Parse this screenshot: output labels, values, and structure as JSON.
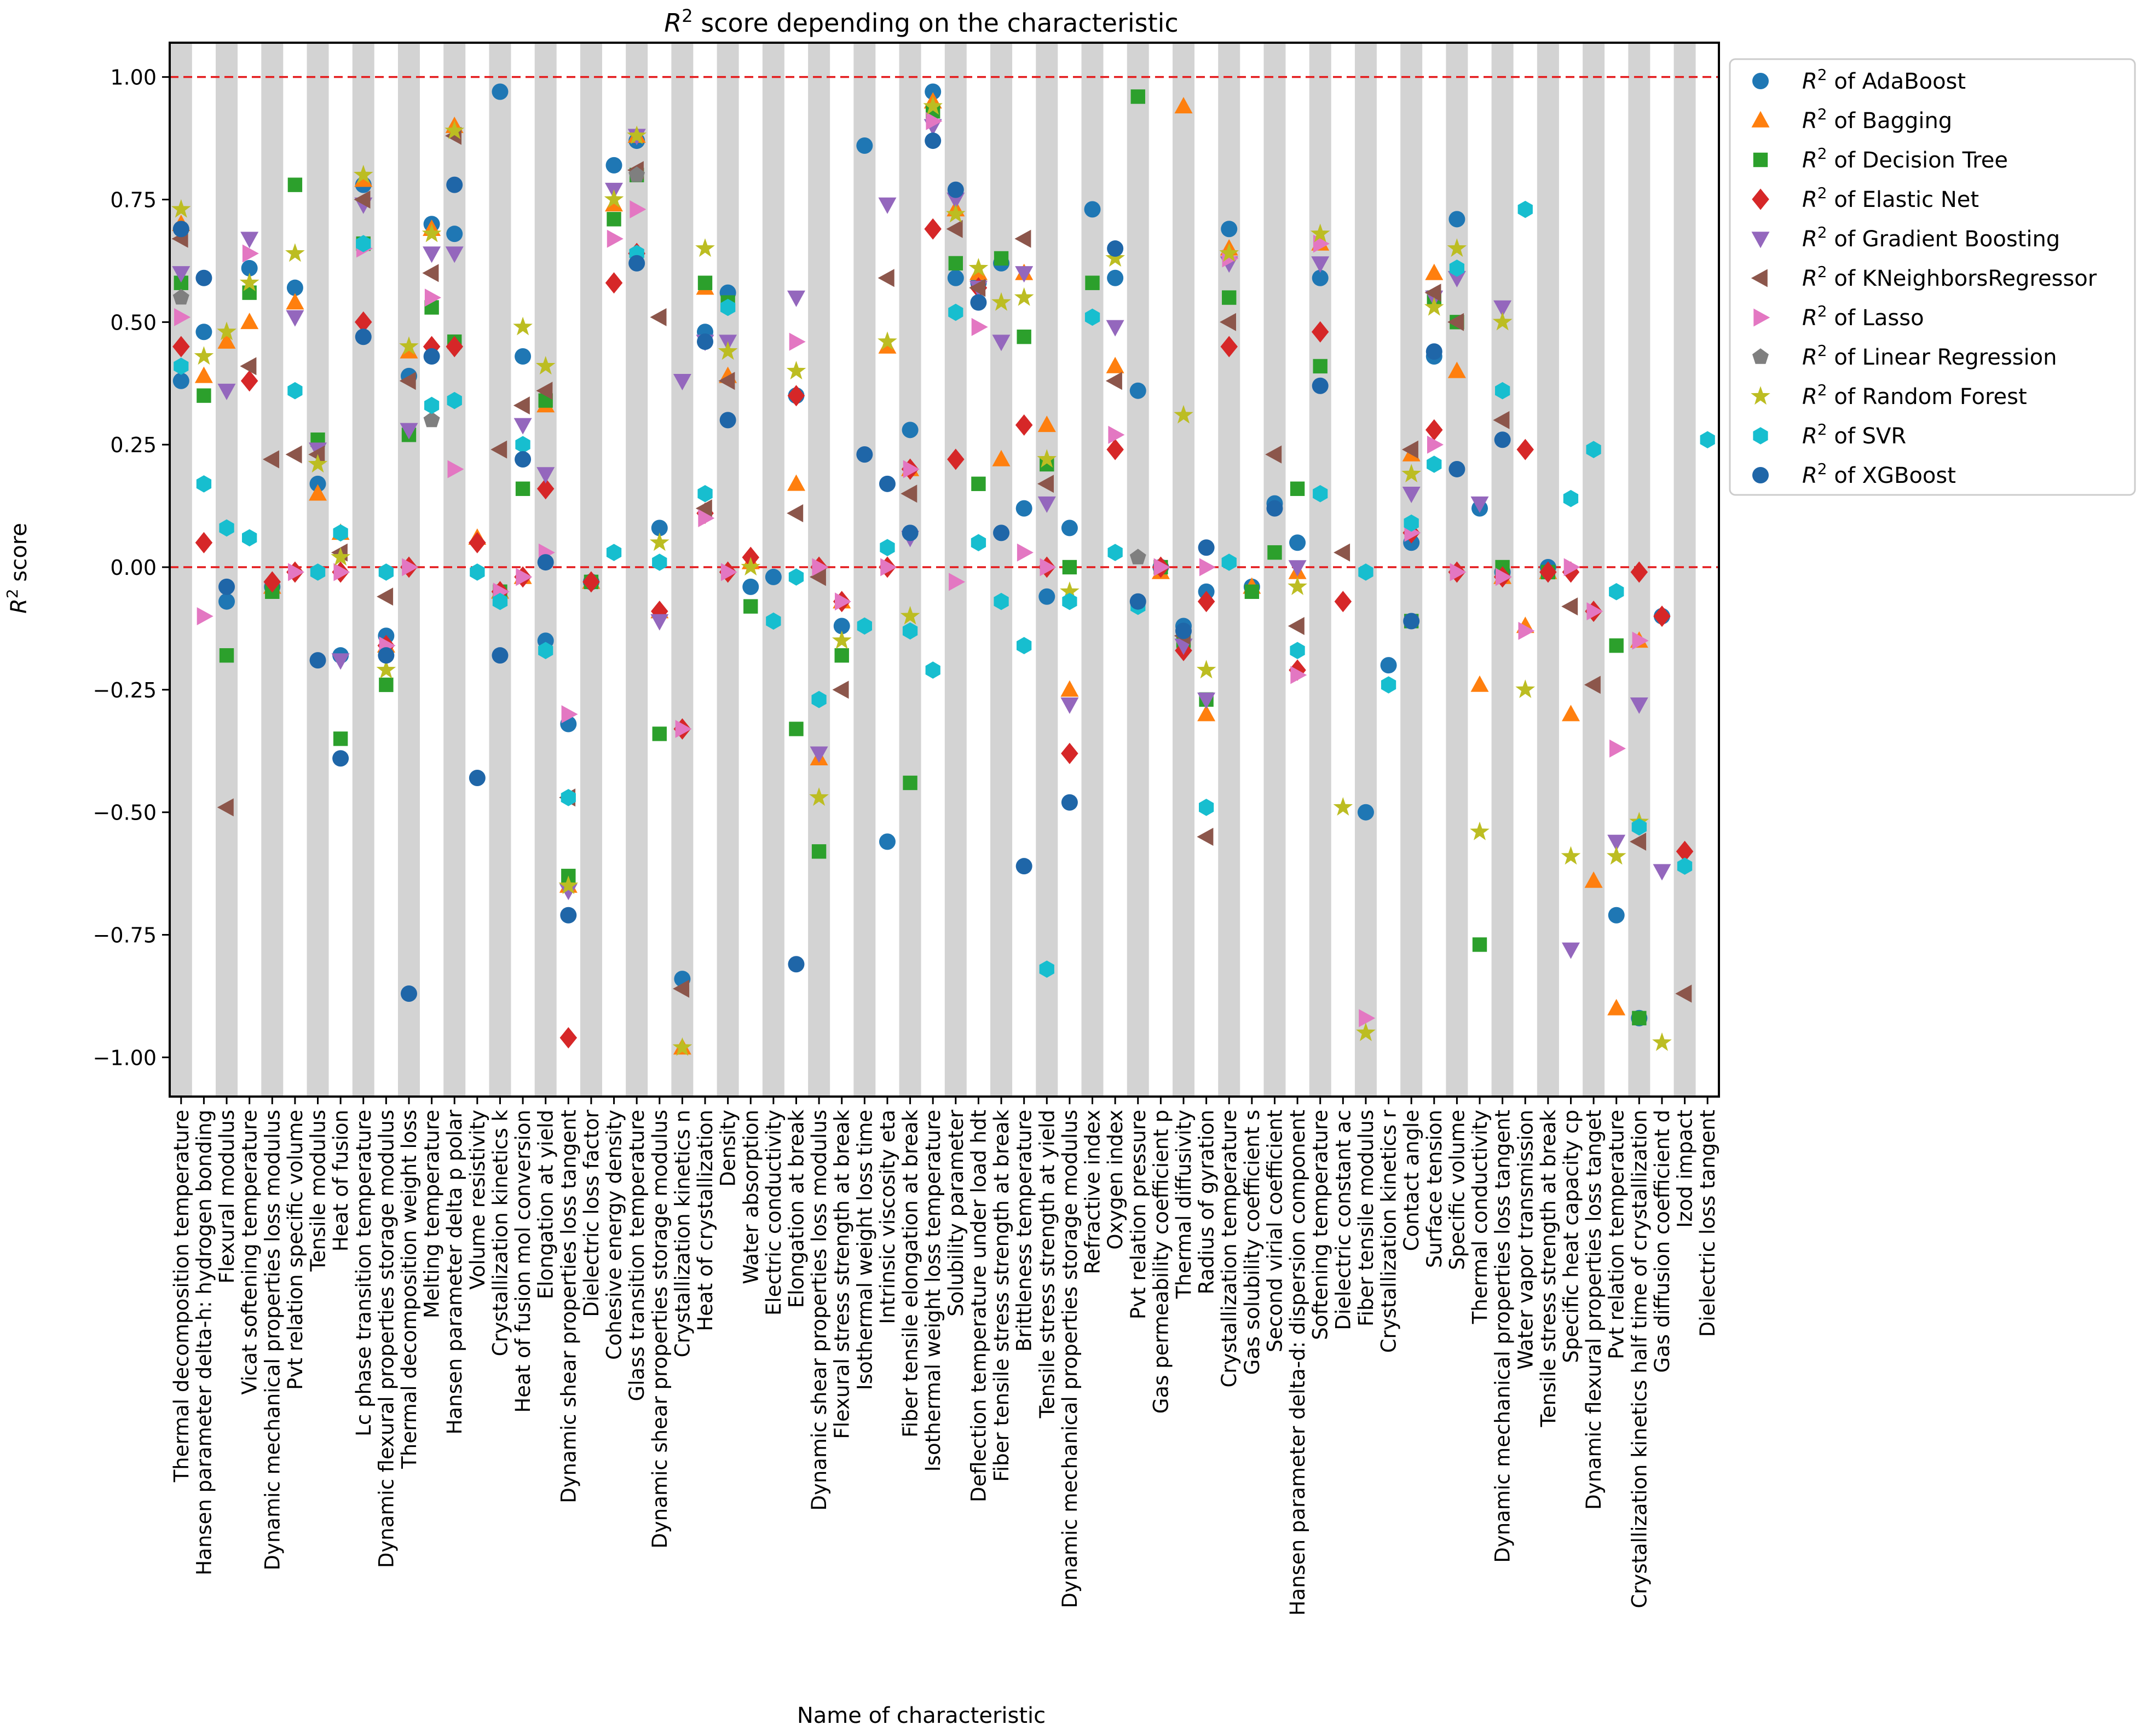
{
  "chart_data": {
    "type": "scatter",
    "title_prefix": "R",
    "title_sup": "2",
    "title_rest": " score depending on the characteristic",
    "xlabel": "Name of characteristic",
    "ylabel_prefix": "R",
    "ylabel_sup": "2",
    "ylabel_rest": " score",
    "ylim": [
      -1.08,
      1.07
    ],
    "yticks": [
      "1.00",
      "0.75",
      "0.50",
      "0.25",
      "0.00",
      "−0.25",
      "−0.50",
      "−0.75",
      "−1.00"
    ],
    "ytick_values": [
      1.0,
      0.75,
      0.5,
      0.25,
      0.0,
      -0.25,
      -0.5,
      -0.75,
      -1.0
    ],
    "reference_lines": [
      1.0,
      0.0
    ],
    "reference_line_color": "#e41a1c",
    "grid": false,
    "band_color": "#d3d3d3",
    "legend_placement": "outside-top-right",
    "categories": [
      "Thermal decomposition temperature",
      "Hansen parameter delta-h: hydrogen bonding",
      "Flexural modulus",
      "Vicat softening temperature",
      "Dynamic mechanical properties loss modulus",
      "Pvt relation specific volume",
      "Tensile modulus",
      "Heat of fusion",
      "Lc phase transition temperature",
      "Dynamic flexural properties storage modulus",
      "Thermal decomposition weight loss",
      "Melting temperature",
      "Hansen parameter delta p polar",
      "Volume resistivity",
      "Crystallization kinetics k",
      "Heat of fusion mol conversion",
      "Elongation at yield",
      "Dynamic shear properties loss tangent",
      "Dielectric loss factor",
      "Cohesive energy density",
      "Glass transition temperature",
      "Dynamic shear properties storage modulus",
      "Crystallization kinetics n",
      "Heat of crystallization",
      "Density",
      "Water absorption",
      "Electric conductivity",
      "Elongation at break",
      "Dynamic shear properties loss modulus",
      "Flexural stress strength at break",
      "Isothermal weight loss time",
      "Intrinsic viscosity eta",
      "Fiber tensile elongation at break",
      "Isothermal weight loss temperature",
      "Solubility parameter",
      "Deflection temperature under load hdt",
      "Fiber tensile stress strength at break",
      "Brittleness temperature",
      "Tensile stress strength at yield",
      "Dynamic mechanical properties storage modulus",
      "Refractive index",
      "Oxygen index",
      "Pvt relation pressure",
      "Gas permeability coefficient p",
      "Thermal diffusivity",
      "Radius of gyration",
      "Crystallization temperature",
      "Gas solubility coefficient s",
      "Second virial coefficient",
      "Hansen parameter delta-d: dispersion component",
      "Softening temperature",
      "Dielectric constant ac",
      "Fiber tensile modulus",
      "Crystallization kinetics r",
      "Contact angle",
      "Surface tension",
      "Specific volume",
      "Thermal conductivity",
      "Dynamic mechanical properties loss tangent",
      "Water vapor transmission",
      "Tensile stress strength at break",
      "Specific heat capacity cp",
      "Dynamic flexural properties loss tanget",
      "Pvt relation temperature",
      "Crystallization kinetics half time of crystallization",
      "Gas diffusion coefficient d",
      "Izod impact",
      "Dielectric loss tangent"
    ],
    "series": [
      {
        "name": "AdaBoost",
        "legend_label": " of AdaBoost",
        "marker": "circle",
        "color": "#1f77b4",
        "values": [
          0.38,
          0.48,
          -0.07,
          0.61,
          -0.04,
          0.57,
          0.17,
          -0.18,
          0.78,
          -0.14,
          0.39,
          0.7,
          0.68,
          null,
          0.97,
          0.43,
          -0.15,
          -0.32,
          -0.03,
          0.82,
          0.87,
          0.08,
          -0.84,
          0.48,
          0.56,
          -0.04,
          -0.02,
          0.35,
          null,
          -0.12,
          0.86,
          -0.56,
          0.28,
          0.97,
          0.59,
          0.58,
          0.62,
          0.12,
          -0.06,
          0.08,
          0.73,
          0.59,
          0.36,
          0.0,
          -0.12,
          -0.05,
          0.69,
          -0.04,
          0.13,
          0.05,
          0.59,
          null,
          -0.5,
          -0.2,
          0.05,
          0.43,
          0.71,
          0.12,
          -0.01,
          null,
          0.0,
          null,
          null,
          -0.71,
          -0.92,
          -0.1,
          null,
          null
        ]
      },
      {
        "name": "Bagging",
        "legend_label": " of Bagging",
        "marker": "triangle-up",
        "color": "#ff7f0e",
        "values": [
          0.7,
          0.39,
          0.46,
          0.5,
          -0.04,
          0.54,
          0.15,
          0.07,
          0.79,
          -0.16,
          0.44,
          0.69,
          0.9,
          0.06,
          -0.05,
          -0.02,
          0.33,
          -0.65,
          -0.03,
          0.74,
          0.88,
          -0.09,
          -0.98,
          0.57,
          0.39,
          0.01,
          null,
          0.17,
          -0.39,
          -0.07,
          null,
          0.45,
          0.2,
          0.95,
          0.73,
          0.6,
          0.22,
          0.6,
          0.29,
          -0.25,
          null,
          0.41,
          null,
          -0.01,
          0.94,
          -0.3,
          0.65,
          -0.04,
          null,
          -0.01,
          0.66,
          null,
          null,
          null,
          0.23,
          0.6,
          0.4,
          -0.24,
          -0.02,
          -0.12,
          -0.01,
          -0.3,
          -0.64,
          -0.9,
          -0.15,
          null,
          null,
          null
        ]
      },
      {
        "name": "Decision Tree",
        "legend_label": " of Decision Tree",
        "marker": "square",
        "color": "#2ca02c",
        "values": [
          0.58,
          0.35,
          -0.18,
          0.56,
          -0.05,
          0.78,
          0.26,
          -0.35,
          0.66,
          -0.24,
          0.27,
          0.53,
          0.46,
          null,
          -0.05,
          0.16,
          0.34,
          -0.63,
          -0.03,
          0.71,
          0.8,
          -0.34,
          null,
          0.58,
          0.54,
          -0.08,
          null,
          -0.33,
          -0.58,
          -0.18,
          null,
          null,
          -0.44,
          0.93,
          0.62,
          0.17,
          0.63,
          0.47,
          0.21,
          0.0,
          0.58,
          null,
          0.96,
          0.0,
          -0.15,
          -0.27,
          0.55,
          -0.05,
          0.03,
          0.16,
          0.41,
          null,
          null,
          null,
          -0.11,
          0.55,
          0.5,
          -0.77,
          0.0,
          null,
          -0.01,
          null,
          null,
          -0.16,
          -0.92,
          null,
          null,
          null
        ]
      },
      {
        "name": "Elastic Net",
        "legend_label": " of Elastic Net",
        "marker": "diamond",
        "color": "#d62728",
        "values": [
          0.45,
          0.05,
          null,
          0.38,
          -0.03,
          -0.01,
          null,
          -0.01,
          0.5,
          -0.16,
          0.0,
          0.45,
          0.45,
          0.05,
          -0.05,
          -0.02,
          0.16,
          -0.96,
          -0.03,
          0.58,
          0.64,
          -0.09,
          -0.33,
          0.11,
          -0.01,
          0.02,
          null,
          0.35,
          0.0,
          -0.07,
          null,
          0.0,
          0.2,
          0.69,
          0.22,
          0.57,
          null,
          0.29,
          0.0,
          -0.38,
          null,
          0.24,
          null,
          0.0,
          -0.17,
          -0.07,
          0.45,
          null,
          null,
          -0.21,
          0.48,
          -0.07,
          null,
          null,
          0.07,
          0.28,
          -0.01,
          null,
          -0.02,
          0.24,
          -0.01,
          -0.01,
          -0.09,
          null,
          -0.01,
          -0.1,
          -0.58,
          null
        ]
      },
      {
        "name": "Gradient Boosting",
        "legend_label": " of Gradient Boosting",
        "marker": "triangle-down",
        "color": "#9467bd",
        "values": [
          0.6,
          null,
          0.36,
          0.67,
          null,
          0.51,
          0.24,
          -0.19,
          0.74,
          null,
          0.28,
          0.64,
          0.64,
          null,
          null,
          0.29,
          0.19,
          -0.66,
          null,
          0.77,
          0.88,
          -0.11,
          0.38,
          0.46,
          0.46,
          null,
          null,
          0.55,
          -0.38,
          null,
          null,
          0.74,
          0.06,
          0.9,
          0.75,
          0.57,
          0.46,
          0.6,
          0.13,
          -0.28,
          null,
          0.49,
          null,
          null,
          -0.16,
          -0.27,
          0.62,
          null,
          null,
          0.0,
          0.62,
          null,
          null,
          null,
          0.15,
          0.55,
          0.59,
          0.13,
          0.53,
          null,
          null,
          -0.78,
          null,
          -0.56,
          -0.28,
          -0.62,
          null,
          null
        ]
      },
      {
        "name": "KNeighborsRegressor",
        "legend_label": " of KNeighborsRegressor",
        "marker": "triangle-left",
        "color": "#8c564b",
        "values": [
          0.67,
          null,
          -0.49,
          0.41,
          0.22,
          0.23,
          0.23,
          0.03,
          0.75,
          -0.06,
          0.38,
          0.6,
          0.88,
          null,
          0.24,
          0.33,
          0.36,
          -0.47,
          null,
          null,
          0.81,
          0.51,
          -0.86,
          0.12,
          0.38,
          null,
          null,
          0.11,
          -0.02,
          -0.25,
          null,
          0.59,
          0.15,
          null,
          0.69,
          0.57,
          null,
          0.67,
          0.17,
          null,
          null,
          0.38,
          null,
          null,
          -0.14,
          -0.55,
          0.5,
          null,
          0.23,
          -0.12,
          null,
          0.03,
          null,
          null,
          0.24,
          0.56,
          0.5,
          null,
          0.3,
          null,
          null,
          -0.08,
          -0.24,
          null,
          -0.56,
          null,
          -0.87,
          null
        ]
      },
      {
        "name": "Lasso",
        "legend_label": " of Lasso",
        "marker": "triangle-right",
        "color": "#e377c2",
        "values": [
          0.51,
          -0.1,
          null,
          0.64,
          null,
          -0.01,
          null,
          -0.01,
          0.65,
          -0.16,
          0.0,
          0.55,
          0.2,
          null,
          -0.05,
          -0.02,
          0.03,
          -0.3,
          null,
          0.67,
          0.73,
          null,
          -0.33,
          0.1,
          -0.01,
          null,
          null,
          0.46,
          0.0,
          -0.07,
          null,
          0.0,
          0.2,
          0.91,
          -0.03,
          0.49,
          null,
          0.03,
          0.0,
          null,
          null,
          0.27,
          null,
          0.0,
          null,
          0.0,
          0.63,
          null,
          null,
          -0.22,
          0.66,
          null,
          -0.92,
          null,
          0.07,
          0.25,
          -0.01,
          null,
          -0.02,
          -0.13,
          null,
          0.0,
          -0.09,
          -0.37,
          -0.15,
          null,
          null,
          null
        ]
      },
      {
        "name": "Linear Regression",
        "legend_label": " of Linear Regression",
        "marker": "pentagon",
        "color": "#7f7f7f",
        "values": [
          0.55,
          null,
          null,
          null,
          null,
          null,
          null,
          null,
          null,
          null,
          null,
          0.3,
          null,
          null,
          null,
          null,
          null,
          null,
          null,
          null,
          0.8,
          null,
          null,
          null,
          null,
          null,
          null,
          null,
          null,
          null,
          null,
          null,
          null,
          null,
          null,
          null,
          null,
          null,
          null,
          null,
          null,
          null,
          0.02,
          null,
          null,
          null,
          null,
          null,
          null,
          null,
          null,
          null,
          null,
          null,
          null,
          null,
          null,
          null,
          null,
          null,
          null,
          null,
          null,
          null,
          null,
          null,
          null,
          null
        ]
      },
      {
        "name": "Random Forest",
        "legend_label": " of Random Forest",
        "marker": "star",
        "color": "#bcbd22",
        "values": [
          0.73,
          0.43,
          0.48,
          0.58,
          null,
          0.64,
          0.21,
          0.02,
          0.8,
          -0.21,
          0.45,
          0.68,
          0.89,
          null,
          null,
          0.49,
          0.41,
          -0.65,
          null,
          0.75,
          0.88,
          0.05,
          -0.98,
          0.65,
          0.44,
          0.0,
          null,
          0.4,
          -0.47,
          -0.15,
          null,
          0.46,
          -0.1,
          0.94,
          0.72,
          0.61,
          0.54,
          0.55,
          0.22,
          -0.05,
          null,
          0.63,
          null,
          null,
          0.31,
          -0.21,
          0.64,
          null,
          null,
          -0.04,
          0.68,
          -0.49,
          -0.95,
          null,
          0.19,
          0.53,
          0.65,
          -0.54,
          0.5,
          -0.25,
          null,
          -0.59,
          null,
          -0.59,
          -0.52,
          -0.97,
          null,
          null
        ]
      },
      {
        "name": "SVR",
        "legend_label": " of SVR",
        "marker": "hexagon",
        "color": "#17becf",
        "values": [
          0.41,
          0.17,
          0.08,
          0.06,
          null,
          0.36,
          -0.01,
          0.07,
          0.66,
          -0.01,
          null,
          0.33,
          0.34,
          -0.01,
          -0.07,
          0.25,
          -0.17,
          -0.47,
          null,
          0.03,
          0.64,
          0.01,
          null,
          0.15,
          0.53,
          null,
          -0.11,
          -0.02,
          -0.27,
          null,
          -0.12,
          0.04,
          -0.13,
          -0.21,
          0.52,
          0.05,
          -0.07,
          -0.16,
          -0.82,
          -0.07,
          0.51,
          0.03,
          -0.08,
          null,
          null,
          -0.49,
          0.01,
          null,
          null,
          -0.17,
          0.15,
          null,
          -0.01,
          -0.24,
          0.09,
          0.21,
          0.61,
          null,
          0.36,
          0.73,
          null,
          0.14,
          0.24,
          -0.05,
          -0.53,
          null,
          -0.61,
          0.26
        ]
      },
      {
        "name": "XGBoost",
        "legend_label": " of XGBoost",
        "marker": "circle",
        "color": "#1f66a8",
        "values": [
          0.69,
          0.59,
          -0.04,
          null,
          null,
          null,
          -0.19,
          -0.39,
          0.47,
          -0.18,
          -0.87,
          0.43,
          0.78,
          -0.43,
          -0.18,
          0.22,
          0.01,
          -0.71,
          null,
          null,
          0.62,
          null,
          null,
          0.46,
          0.3,
          null,
          null,
          -0.81,
          null,
          null,
          0.23,
          0.17,
          0.07,
          0.87,
          0.77,
          0.54,
          0.07,
          -0.61,
          null,
          -0.48,
          null,
          0.65,
          -0.07,
          null,
          -0.13,
          0.04,
          null,
          null,
          0.12,
          null,
          0.37,
          null,
          null,
          null,
          -0.11,
          0.44,
          0.2,
          null,
          0.26,
          null,
          null,
          null,
          null,
          null,
          null,
          null,
          null,
          null
        ]
      }
    ]
  }
}
